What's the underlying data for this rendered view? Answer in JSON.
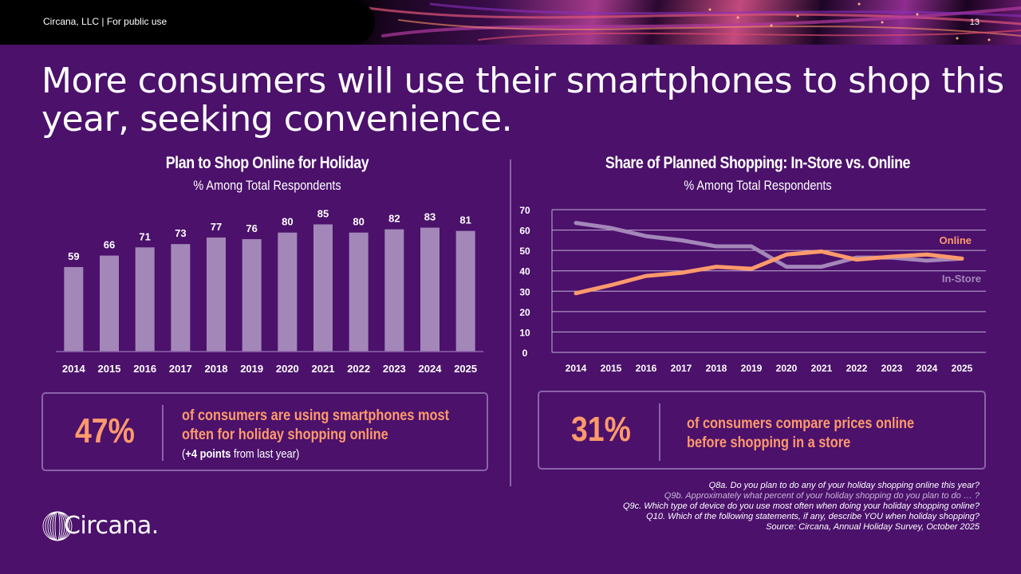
{
  "header": {
    "brand_line": "Circana, LLC |  For public use",
    "page_number": "13"
  },
  "headline": "More consumers will use their smartphones to shop this year, seeking convenience.",
  "colors": {
    "background": "#4b116b",
    "bar": "#a487b9",
    "online": "#ff9a6c",
    "instore": "#a487b9",
    "gridline": "#c2b0d4",
    "accent_text": "#ff9a6c"
  },
  "chart_data": [
    {
      "type": "bar",
      "title": "Plan to Shop Online for Holiday",
      "subtitle": "% Among Total Respondents",
      "categories": [
        "2014",
        "2015",
        "2016",
        "2017",
        "2018",
        "2019",
        "2020",
        "2021",
        "2022",
        "2023",
        "2024",
        "2025"
      ],
      "values": [
        59,
        66,
        71,
        73,
        77,
        76,
        80,
        85,
        80,
        82,
        83,
        81
      ],
      "xlabel": "",
      "ylabel": "",
      "ylim": [
        0,
        90
      ],
      "data_labels": true,
      "grid": false
    },
    {
      "type": "line",
      "title": "Share of Planned Shopping: In-Store vs. Online",
      "subtitle": "% Among Total Respondents",
      "x": [
        "2014",
        "2015",
        "2016",
        "2017",
        "2018",
        "2019",
        "2020",
        "2021",
        "2022",
        "2023",
        "2024",
        "2025"
      ],
      "series": [
        {
          "name": "Online",
          "values": [
            29,
            33,
            37.5,
            39,
            42,
            41,
            48,
            49.5,
            45.5,
            47,
            48,
            46
          ]
        },
        {
          "name": "In-Store",
          "values": [
            63.5,
            61,
            57,
            55,
            52,
            52,
            42,
            42,
            46.5,
            46.5,
            45,
            46
          ]
        }
      ],
      "yticks": [
        0,
        10,
        20,
        30,
        40,
        50,
        60,
        70
      ],
      "ylim": [
        0,
        70
      ],
      "grid": true,
      "legend": "right, inline labels"
    }
  ],
  "callouts": [
    {
      "value": "47%",
      "text_line1": "of consumers are using smartphones most",
      "text_line2": "often for holiday shopping online",
      "note_bold": "+4 points",
      "note_rest": " from last year)",
      "note_open": "("
    },
    {
      "value": "31%",
      "text_line1": "of consumers compare prices online",
      "text_line2": "before shopping in a store"
    }
  ],
  "footnotes": [
    "Q8a. Do you plan to do any of your holiday shopping online this year?",
    "Q9b. Approximately what percent of your holiday shopping do you plan to do … ?",
    "Q9c. Which type of device do you use most often when doing your holiday shopping online?",
    "Q10. Which of the following statements, if any, describe YOU when holiday shopping?",
    "Source: Circana, Annual Holiday Survey, October 2025"
  ],
  "logo": {
    "text": "Circana."
  }
}
